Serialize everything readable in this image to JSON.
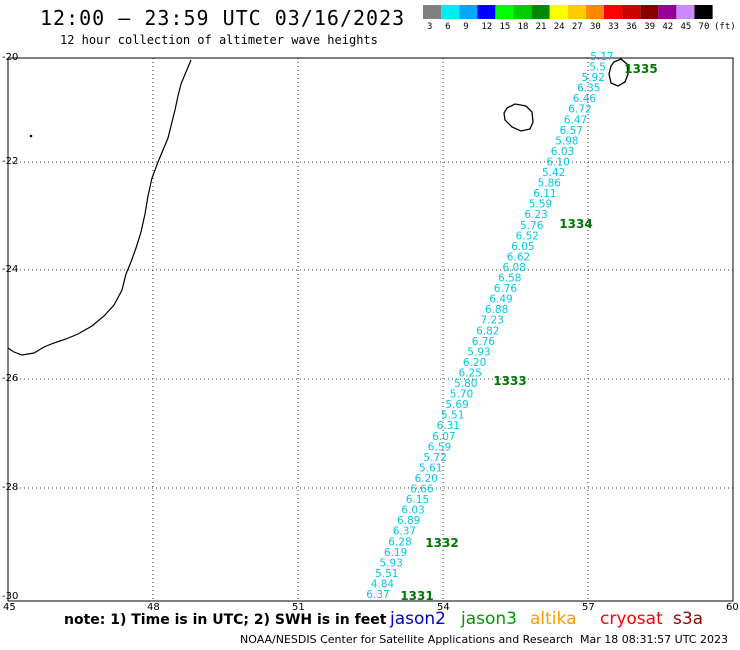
{
  "header": {
    "title": "12:00 — 23:59 UTC 03/16/2023",
    "subtitle": "12 hour collection of altimeter wave heights"
  },
  "color_scale": {
    "unit": "(ft)",
    "entries": [
      {
        "label": "3",
        "color": "#808080"
      },
      {
        "label": "6",
        "color": "#00eeee"
      },
      {
        "label": "9",
        "color": "#00a8ff"
      },
      {
        "label": "12",
        "color": "#0000ff"
      },
      {
        "label": "15",
        "color": "#00ff00"
      },
      {
        "label": "18",
        "color": "#00cc00"
      },
      {
        "label": "21",
        "color": "#008800"
      },
      {
        "label": "24",
        "color": "#ffff00"
      },
      {
        "label": "27",
        "color": "#ffcc00"
      },
      {
        "label": "30",
        "color": "#ff8800"
      },
      {
        "label": "33",
        "color": "#ff0000"
      },
      {
        "label": "36",
        "color": "#cc0000"
      },
      {
        "label": "39",
        "color": "#880000"
      },
      {
        "label": "42",
        "color": "#990099"
      },
      {
        "label": "45",
        "color": "#cc88ff"
      },
      {
        "label": "70",
        "color": "#000000"
      }
    ]
  },
  "axes": {
    "lat_labels": [
      "-20",
      "-22",
      "-24",
      "-26",
      "-28",
      "-30"
    ],
    "lon_labels": [
      "45",
      "48",
      "51",
      "54",
      "57",
      "60"
    ]
  },
  "track": {
    "color": "#00c8e6",
    "pass_color": "#007700",
    "values": [
      "5.17",
      "5.5",
      "5.92",
      "6.35",
      "6.46",
      "6.72",
      "6.47",
      "6.57",
      "5.98",
      "6.03",
      "6.10",
      "5.42",
      "5.86",
      "6.11",
      "5.59",
      "6.23",
      "5.76",
      "6.52",
      "6.05",
      "6.62",
      "6.08",
      "6.58",
      "6.76",
      "6.49",
      "6.88",
      "7.23",
      "6.82",
      "6.76",
      "5.93",
      "6.20",
      "6.25",
      "5.80",
      "5.70",
      "5.69",
      "5.51",
      "6.31",
      "6.07",
      "6.59",
      "5.72",
      "5.61",
      "6.20",
      "6.66",
      "6.15",
      "6.03",
      "6.89",
      "6.37",
      "6.28",
      "6.19",
      "5.93",
      "5.51",
      "4.84",
      "6.37"
    ],
    "pass_labels": [
      "1335",
      "1334",
      "1333",
      "1332",
      "1331"
    ]
  },
  "footer": {
    "note": "note: 1) Time is in UTC; 2) SWH is in feet",
    "satellites": [
      {
        "name": "jason2",
        "color": "#0000cc"
      },
      {
        "name": "jason3",
        "color": "#009900"
      },
      {
        "name": "altika",
        "color": "#ff9900"
      },
      {
        "name": "cryosat",
        "color": "#ff0000"
      },
      {
        "name": "s3a",
        "color": "#990000"
      }
    ],
    "credit": "NOAA/NESDIS Center for Satellite Applications and Research",
    "timestamp": "Mar 18 08:31:57 UTC 2023"
  }
}
